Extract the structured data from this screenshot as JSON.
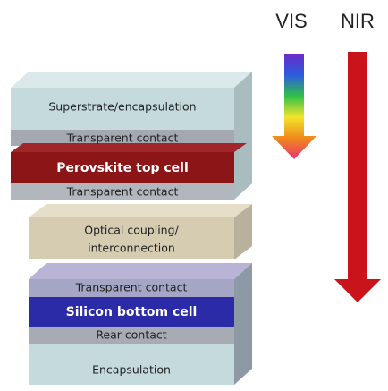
{
  "arrows": {
    "vis": "VIS",
    "nir": "NIR"
  },
  "layers": [
    {
      "label": "Superstrate/encapsulation"
    },
    {
      "label": "Transparent contact"
    },
    {
      "label": "Perovskite top cell"
    },
    {
      "label": "Transparent contact"
    },
    {
      "label": "Optical coupling/"
    },
    {
      "label": "interconnection"
    },
    {
      "label": "Transparent contact"
    },
    {
      "label": "Silicon bottom cell"
    },
    {
      "label": "Rear contact"
    },
    {
      "label": "Encapsulation"
    }
  ]
}
